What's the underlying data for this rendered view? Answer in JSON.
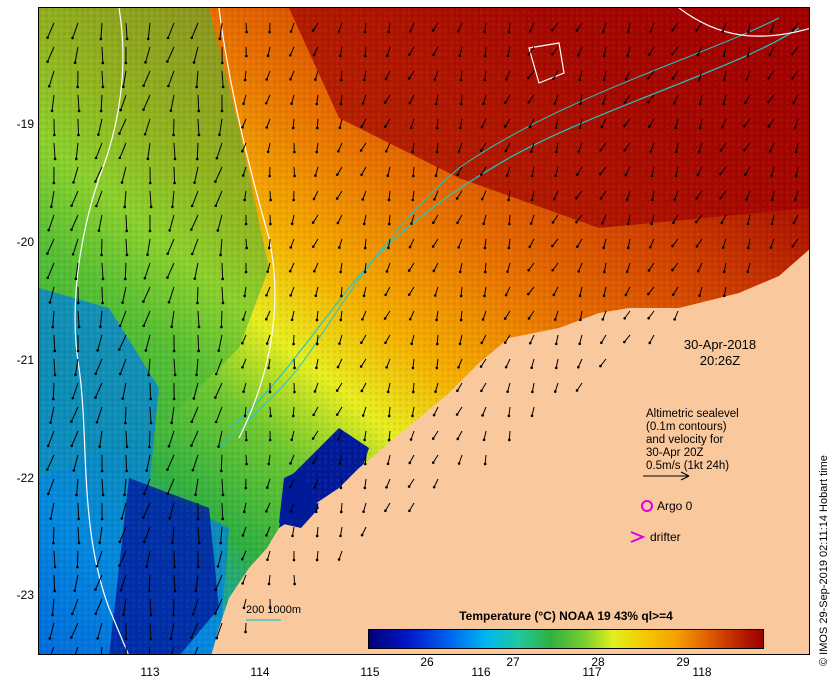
{
  "map": {
    "lat_ticks": [
      "-19",
      "-20",
      "-21",
      "-22",
      "-23"
    ],
    "lon_ticks": [
      "113",
      "114",
      "115",
      "116",
      "117",
      "118"
    ],
    "date": "30-Apr-2018",
    "time": "20:26Z",
    "legend_lines": [
      "Altimetric sealevel",
      "(0.1m contours)",
      "and velocity for",
      "30-Apr 20Z",
      "0.5m/s (1kt 24h)"
    ],
    "argo_label": "Argo 0",
    "drifter_label": "drifter",
    "depth_label": "200  1000m",
    "colorbar_title": "Temperature (°C) NOAA 19 43% ql>=4",
    "colorbar_ticks": [
      "26",
      "27",
      "28",
      "29"
    ],
    "copyright": "© IMOS 29-Sep-2019 02:11:14 Hobart time",
    "colors": {
      "land": "#f9c89c",
      "warm": "#a80000",
      "cool": "#0020a0",
      "argo": "#e000e0",
      "contour": "#ffffff",
      "bathymetry": "#20c8c8"
    }
  }
}
